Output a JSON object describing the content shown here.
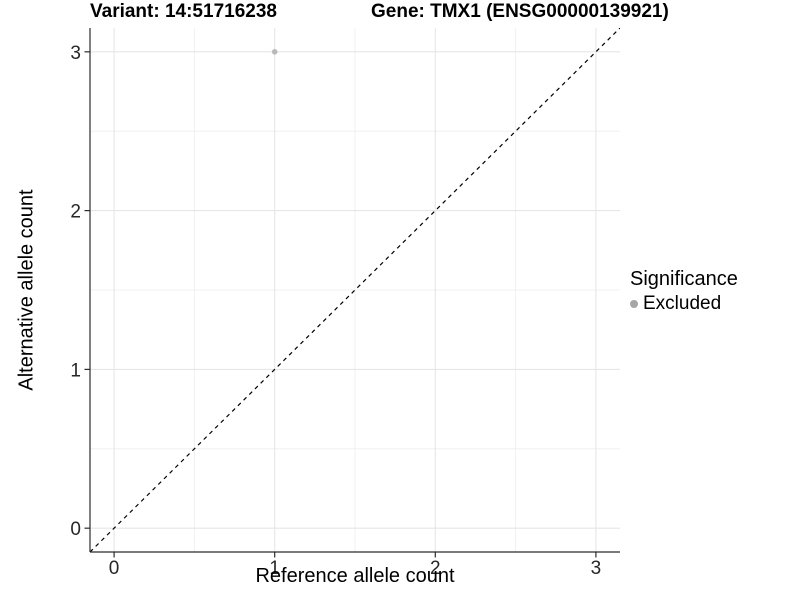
{
  "chart_data": {
    "type": "scatter",
    "title_left": "Variant: 14:51716238",
    "title_right": "Gene: TMX1 (ENSG00000139921)",
    "xlabel": "Reference allele count",
    "ylabel": "Alternative allele count",
    "xlim": [
      -0.15,
      3.15
    ],
    "ylim": [
      -0.15,
      3.15
    ],
    "x_major_ticks": [
      0,
      1,
      2,
      3
    ],
    "y_major_ticks": [
      0,
      1,
      2,
      3
    ],
    "x_minor_gridlines": [
      0.5,
      1.5,
      2.5
    ],
    "y_minor_gridlines": [
      0.5,
      1.5,
      2.5
    ],
    "grid": true,
    "legend_position": "right",
    "series": [
      {
        "name": "Excluded",
        "color": "#b9b9b9",
        "point_radius": 2.8,
        "points": [
          {
            "x": 1,
            "y": 3
          }
        ]
      }
    ],
    "reference_line": {
      "type": "identity",
      "slope": 1,
      "intercept": 0,
      "style": "dashed",
      "color": "#000000"
    },
    "legend": {
      "title": "Significance",
      "items": [
        {
          "label": "Excluded",
          "color": "#a6a6a6"
        }
      ]
    },
    "colors": {
      "background": "#ffffff",
      "major_gridline": "#e6e6e6",
      "minor_gridline": "#f0f0f0",
      "axis_line": "#2b2b2b",
      "tick_mark": "#2b2b2b",
      "tick_label": "#262626",
      "title_text": "#000000"
    }
  }
}
